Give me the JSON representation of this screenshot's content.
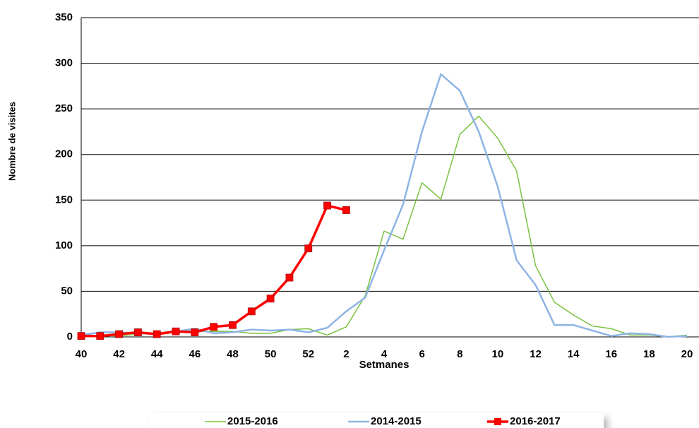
{
  "chart_data": {
    "type": "line",
    "x_label": "Setmanes",
    "y_label": "Nombre de visites",
    "categories": [
      "40",
      null,
      "42",
      null,
      "44",
      null,
      "46",
      null,
      "48",
      null,
      "50",
      null,
      "52",
      null,
      "2",
      null,
      "4",
      null,
      "6",
      null,
      "8",
      null,
      "10",
      null,
      "12",
      null,
      "14",
      null,
      "16",
      null,
      "18",
      null,
      "20"
    ],
    "series": [
      {
        "name": "2015-2016",
        "color": "#7ac142",
        "values": [
          1,
          2,
          1,
          3,
          4,
          7,
          6,
          6,
          6,
          4,
          4,
          8,
          9,
          2,
          11,
          45,
          116,
          107,
          169,
          151,
          222,
          242,
          218,
          182,
          78,
          38,
          24,
          12,
          9,
          2,
          2,
          0,
          2
        ]
      },
      {
        "name": "2014-2015",
        "color": "#8eb4e3",
        "values": [
          2,
          5,
          5,
          4,
          3,
          6,
          9,
          4,
          5,
          8,
          7,
          8,
          5,
          10,
          28,
          43,
          95,
          145,
          225,
          288,
          270,
          225,
          165,
          84,
          57,
          13,
          13,
          7,
          1,
          4,
          3,
          0,
          1
        ]
      },
      {
        "name": "2016-2017",
        "color": "#ff0000",
        "values": [
          1,
          1,
          3,
          5,
          3,
          6,
          5,
          11,
          13,
          28,
          42,
          65,
          97,
          144,
          139,
          null,
          null,
          null,
          null,
          null,
          null,
          null,
          null,
          null,
          null,
          null,
          null,
          null,
          null,
          null,
          null,
          null,
          null
        ]
      }
    ],
    "ylim": [
      0,
      350
    ],
    "yticks": [
      0,
      50,
      100,
      150,
      200,
      250,
      300,
      350
    ],
    "grid": true,
    "legend": "bottom"
  }
}
